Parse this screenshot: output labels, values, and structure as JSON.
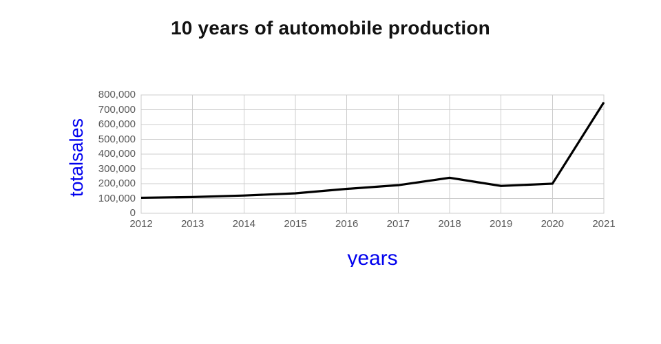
{
  "title": "10 years of automobile production",
  "chart_data": {
    "type": "line",
    "title": "10 years of automobile production",
    "xlabel": "years",
    "ylabel": "totalsales",
    "x": [
      2012,
      2013,
      2014,
      2015,
      2016,
      2017,
      2018,
      2019,
      2020,
      2021
    ],
    "xtick_labels": [
      "2012",
      "2013",
      "2014",
      "2015",
      "2016",
      "2017",
      "2018",
      "2019",
      "2020",
      "2021"
    ],
    "series": [
      {
        "name": "totalsales",
        "values": [
          105000,
          110000,
          120000,
          135000,
          165000,
          190000,
          240000,
          185000,
          200000,
          750000
        ],
        "color": "#000000"
      }
    ],
    "ylim": [
      0,
      800000
    ],
    "yticks": [
      0,
      100000,
      200000,
      300000,
      400000,
      500000,
      600000,
      700000,
      800000
    ],
    "ytick_labels": [
      "0",
      "100,000",
      "200,000",
      "300,000",
      "400,000",
      "500,000",
      "600,000",
      "700,000",
      "800,000"
    ],
    "grid": true,
    "legend": false,
    "line_width": 3.2,
    "colors": {
      "title": "#121212",
      "axis_title": "#0000ee",
      "tick_label": "#595959",
      "grid": "#cccccc",
      "line": "#000000",
      "background": "#ffffff"
    }
  }
}
